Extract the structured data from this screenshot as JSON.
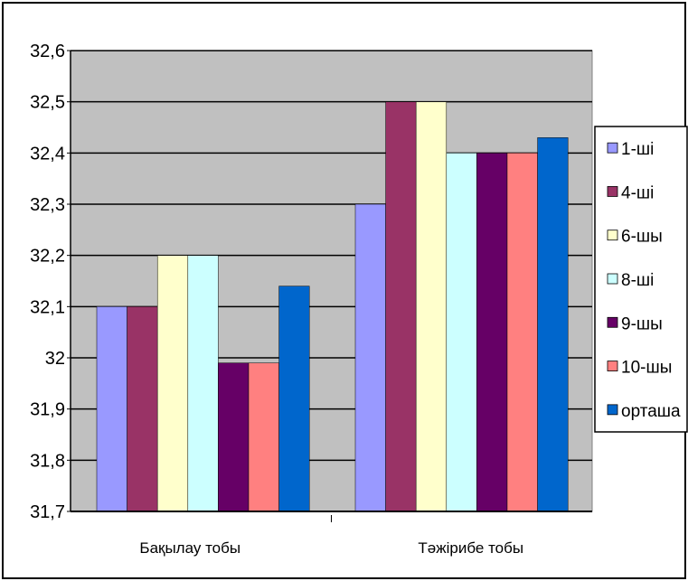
{
  "chart_data": {
    "type": "bar",
    "categories": [
      "Бақылау тобы",
      "Тәжірибе тобы"
    ],
    "ylim": [
      31.7,
      32.6
    ],
    "yticks": [
      "31,7",
      "31,8",
      "31,9",
      "32",
      "32,1",
      "32,2",
      "32,3",
      "32,4",
      "32,5",
      "32,6"
    ],
    "series": [
      {
        "name": "1-ші",
        "color": "#9999ff",
        "values": [
          32.1,
          32.3
        ]
      },
      {
        "name": "4-ші",
        "color": "#993366",
        "values": [
          32.1,
          32.5
        ]
      },
      {
        "name": "6-шы",
        "color": "#ffffcc",
        "values": [
          32.2,
          32.5
        ]
      },
      {
        "name": "8-ші",
        "color": "#ccffff",
        "values": [
          32.2,
          32.4
        ]
      },
      {
        "name": "9-шы",
        "color": "#660066",
        "values": [
          31.99,
          32.4
        ]
      },
      {
        "name": "10-шы",
        "color": "#ff8080",
        "values": [
          31.99,
          32.4
        ]
      },
      {
        "name": "орташа",
        "color": "#0066cc",
        "values": [
          32.14,
          32.43
        ]
      }
    ],
    "plot_background": "#c0c0c0",
    "grid": true,
    "legend_position": "right"
  }
}
